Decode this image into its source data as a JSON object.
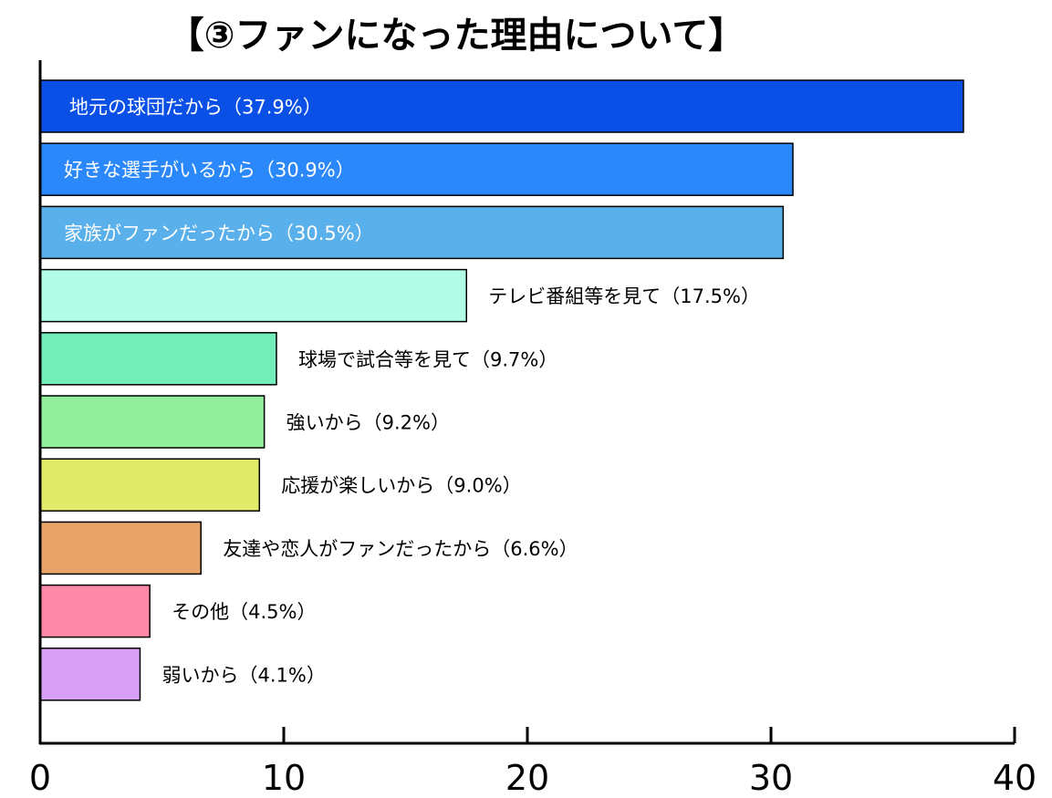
{
  "chart_data": {
    "type": "bar",
    "orientation": "horizontal",
    "title": "【③ファンになった理由について】",
    "categories": [
      "地元の球団だから（37.9%）",
      "好きな選手がいるから（30.9%）",
      "家族がファンだったから（30.5%）",
      "テレビ番組等を見て（17.5%）",
      "球場で試合等を見て（9.7%）",
      "強いから（9.2%）",
      "応援が楽しいから（9.0%）",
      "友達や恋人がファンだったから（6.6%）",
      "その他（4.5%）",
      "弱いから（4.1%）"
    ],
    "values": [
      37.9,
      30.9,
      30.5,
      17.5,
      9.7,
      9.2,
      9.0,
      6.6,
      4.5,
      4.1
    ],
    "colors": [
      "#0a50e6",
      "#2a88fa",
      "#5ab0ea",
      "#b2fde6",
      "#74eeb8",
      "#90ee9c",
      "#e2ea6a",
      "#e8a468",
      "#fa88a6",
      "#d8a0f4"
    ],
    "label_inside": [
      true,
      true,
      true,
      false,
      false,
      false,
      false,
      false,
      false,
      false
    ],
    "xlim": [
      0,
      40
    ],
    "xticks": [
      "0",
      "10",
      "20",
      "30",
      "40"
    ],
    "grid": false,
    "legend": "none"
  }
}
